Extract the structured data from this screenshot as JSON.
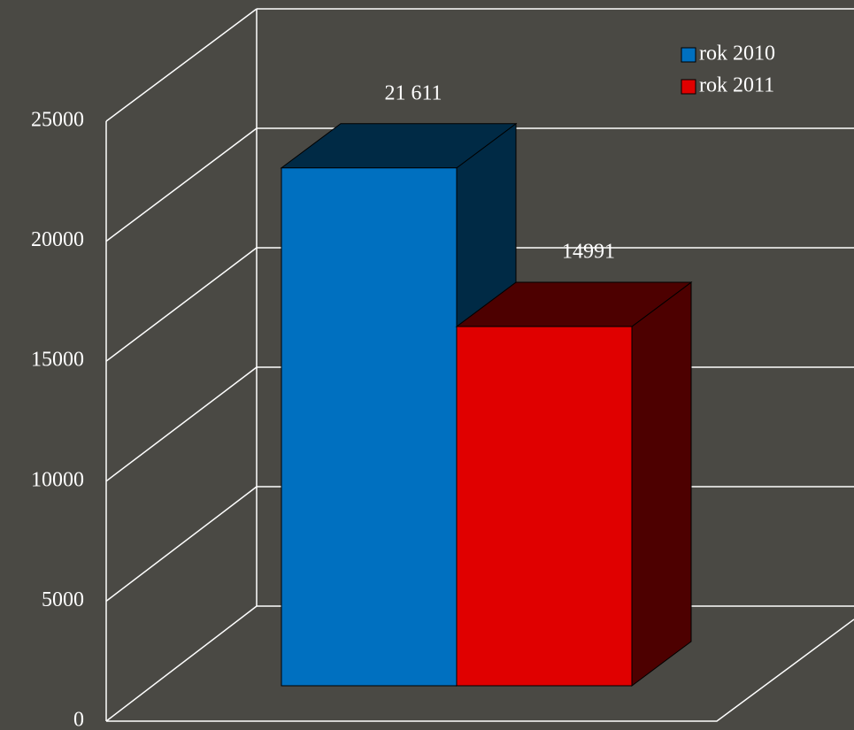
{
  "chart_data": {
    "type": "bar3d",
    "series": [
      {
        "name": "rok 2010",
        "color": "#0070c0",
        "side_color": "#002a45",
        "values": [
          21611
        ],
        "value_labels": [
          "21 611"
        ]
      },
      {
        "name": "rok 2011",
        "color": "#e00000",
        "side_color": "#4d0000",
        "values": [
          14991
        ],
        "value_labels": [
          "14991"
        ]
      }
    ],
    "ylim": [
      0,
      25000
    ],
    "yticks": [
      0,
      5000,
      10000,
      15000,
      20000,
      25000
    ],
    "grid": true,
    "legend": "top-right"
  }
}
